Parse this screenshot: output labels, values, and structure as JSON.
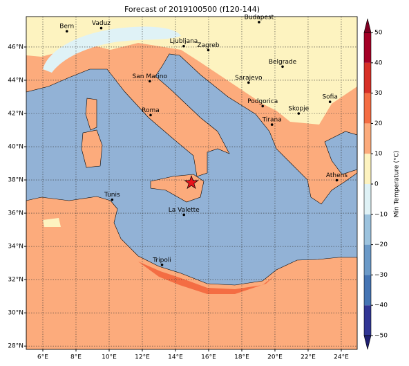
{
  "title": "Forecast of 2019100500 (f120-144)",
  "lon_range": [
    5,
    24.96
  ],
  "lat_range": [
    27.8,
    47.83
  ],
  "lon_ticks": [
    {
      "value": 6,
      "label": "6°E"
    },
    {
      "value": 8,
      "label": "8°E"
    },
    {
      "value": 10,
      "label": "10°E"
    },
    {
      "value": 12,
      "label": "12°E"
    },
    {
      "value": 14,
      "label": "14°E"
    },
    {
      "value": 16,
      "label": "16°E"
    },
    {
      "value": 18,
      "label": "18°E"
    },
    {
      "value": 20,
      "label": "20°E"
    },
    {
      "value": 22,
      "label": "22°E"
    },
    {
      "value": 24,
      "label": "24°E"
    }
  ],
  "lat_ticks": [
    {
      "value": 28,
      "label": "28°N"
    },
    {
      "value": 30,
      "label": "30°N"
    },
    {
      "value": 32,
      "label": "32°N"
    },
    {
      "value": 34,
      "label": "34°N"
    },
    {
      "value": 36,
      "label": "36°N"
    },
    {
      "value": 38,
      "label": "38°N"
    },
    {
      "value": 40,
      "label": "40°N"
    },
    {
      "value": 42,
      "label": "42°N"
    },
    {
      "value": 44,
      "label": "44°N"
    },
    {
      "value": 46,
      "label": "46°N"
    }
  ],
  "grid": true,
  "cities": [
    {
      "name": "Bern",
      "lon": 7.45,
      "lat": 46.95
    },
    {
      "name": "Vaduz",
      "lon": 9.52,
      "lat": 47.14
    },
    {
      "name": "Budapest",
      "lon": 19.04,
      "lat": 47.5
    },
    {
      "name": "Ljubljana",
      "lon": 14.5,
      "lat": 46.05
    },
    {
      "name": "Zagreb",
      "lon": 15.98,
      "lat": 45.81
    },
    {
      "name": "Belgrade",
      "lon": 20.46,
      "lat": 44.82
    },
    {
      "name": "Sarajevo",
      "lon": 18.41,
      "lat": 43.86
    },
    {
      "name": "San Marino",
      "lon": 12.45,
      "lat": 43.94
    },
    {
      "name": "Sofia",
      "lon": 23.32,
      "lat": 42.7
    },
    {
      "name": "Podgorica",
      "lon": 19.26,
      "lat": 42.44
    },
    {
      "name": "Skopje",
      "lon": 21.43,
      "lat": 42.0
    },
    {
      "name": "Roma",
      "lon": 12.5,
      "lat": 41.9
    },
    {
      "name": "Tirana",
      "lon": 19.82,
      "lat": 41.33
    },
    {
      "name": "Athens",
      "lon": 23.73,
      "lat": 37.98
    },
    {
      "name": "Tunis",
      "lon": 10.18,
      "lat": 36.81
    },
    {
      "name": "La Valette",
      "lon": 14.51,
      "lat": 35.9
    },
    {
      "name": "Tripoli",
      "lon": 13.19,
      "lat": 32.89
    }
  ],
  "marker": {
    "lon": 14.96,
    "lat": 37.83,
    "color": "#e8141c"
  },
  "colorbar": {
    "label": "Min Temperature (°C)",
    "range": [
      -50,
      50
    ],
    "ticks": [
      {
        "value": -50,
        "label": "−50"
      },
      {
        "value": -40,
        "label": "−40"
      },
      {
        "value": -30,
        "label": "−30"
      },
      {
        "value": -20,
        "label": "−20"
      },
      {
        "value": -10,
        "label": "−10"
      },
      0,
      10,
      20,
      30,
      40,
      50
    ],
    "colors": [
      "#313695",
      "#4575b4",
      "#6b9ac8",
      "#9cc3de",
      "#dff2f6",
      "#fdf3c0",
      "#fcab7c",
      "#f46d43",
      "#d73027",
      "#a50026"
    ],
    "under_color": "#1f1f70",
    "over_color": "#7f0022"
  }
}
